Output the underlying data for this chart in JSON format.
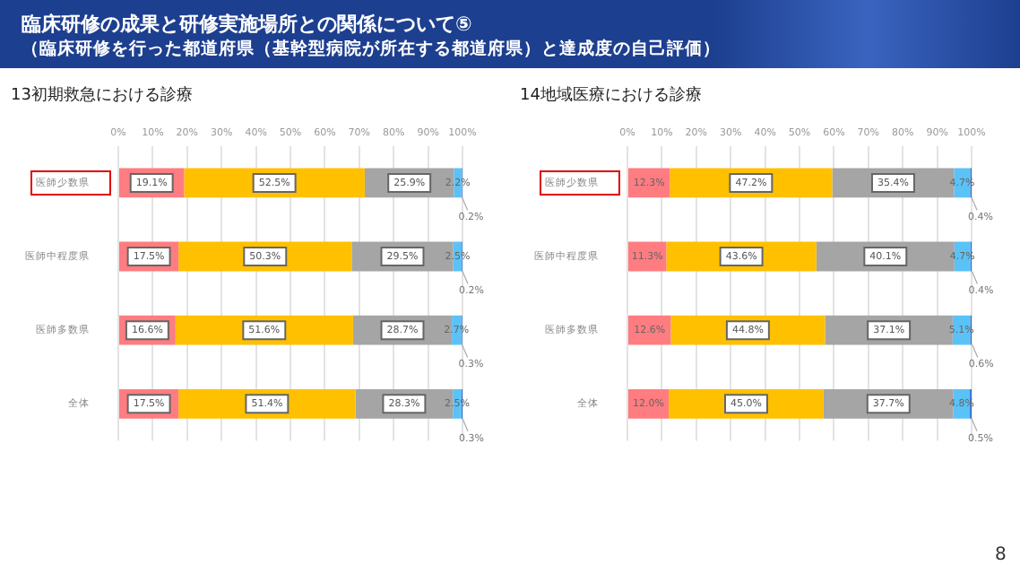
{
  "chart_data": [
    {
      "type": "bar",
      "orientation": "horizontal",
      "stacked": true,
      "title": "13初期救急における診療",
      "annotations": [
        "臨床研修の成果と研修実施場所との関係について⑤",
        "（臨床研修を行った都道府県（基幹型病院が所在する都道府県）と達成度の自己評価）"
      ],
      "categories": [
        "医師少数県",
        "医師中程度県",
        "医師多数県",
        "全体"
      ],
      "series": [
        {
          "color": "#ff7c80",
          "values": [
            19.1,
            17.5,
            16.6,
            17.5
          ],
          "value_labels": [
            "19.1%",
            "17.5%",
            "16.6%",
            "17.5%"
          ]
        },
        {
          "color": "#ffc000",
          "values": [
            52.5,
            50.3,
            51.6,
            51.4
          ],
          "value_labels": [
            "52.5%",
            "50.3%",
            "51.6%",
            "51.4%"
          ]
        },
        {
          "color": "#a5a5a5",
          "values": [
            25.9,
            29.5,
            28.7,
            28.3
          ],
          "value_labels": [
            "25.9%",
            "29.5%",
            "28.7%",
            "28.3%"
          ]
        },
        {
          "color": "#5bc2f7",
          "values": [
            2.2,
            2.5,
            2.7,
            2.5
          ],
          "value_labels": [
            "2.2%",
            "2.5%",
            "2.7%",
            "2.5%"
          ]
        },
        {
          "color": "#2e6fd0",
          "values": [
            0.2,
            0.2,
            0.3,
            0.3
          ],
          "value_labels": [
            "0.2%",
            "0.2%",
            "0.3%",
            "0.3%"
          ]
        }
      ],
      "xlim": [
        0,
        100
      ],
      "xticks": [
        {
          "value": 0,
          "label": "0%"
        },
        {
          "value": 10,
          "label": "10%"
        },
        {
          "value": 20,
          "label": "20%"
        },
        {
          "value": 30,
          "label": "30%"
        },
        {
          "value": 40,
          "label": "40%"
        },
        {
          "value": 50,
          "label": "50%"
        },
        {
          "value": 60,
          "label": "60%"
        },
        {
          "value": 70,
          "label": "70%"
        },
        {
          "value": 80,
          "label": "80%"
        },
        {
          "value": 90,
          "label": "90%"
        },
        {
          "value": 100,
          "label": "100%"
        }
      ],
      "grid": "x",
      "legend": false
    },
    {
      "type": "bar",
      "orientation": "horizontal",
      "stacked": true,
      "title": "14地域医療における診療",
      "annotations": [
        "8"
      ],
      "categories": [
        "医師少数県",
        "医師中程度県",
        "医師多数県",
        "全体"
      ],
      "series": [
        {
          "color": "#ff7c80",
          "values": [
            12.3,
            11.3,
            12.6,
            12.0
          ],
          "value_labels": [
            "12.3%",
            "11.3%",
            "12.6%",
            "12.0%"
          ]
        },
        {
          "color": "#ffc000",
          "values": [
            47.2,
            43.6,
            44.8,
            45.0
          ],
          "value_labels": [
            "47.2%",
            "43.6%",
            "44.8%",
            "45.0%"
          ]
        },
        {
          "color": "#a5a5a5",
          "values": [
            35.4,
            40.1,
            37.1,
            37.7
          ],
          "value_labels": [
            "35.4%",
            "40.1%",
            "37.1%",
            "37.7%"
          ]
        },
        {
          "color": "#5bc2f7",
          "values": [
            4.7,
            4.7,
            5.1,
            4.8
          ],
          "value_labels": [
            "4.7%",
            "4.7%",
            "5.1%",
            "4.8%"
          ]
        },
        {
          "color": "#2e6fd0",
          "values": [
            0.4,
            0.4,
            0.6,
            0.5
          ],
          "value_labels": [
            "0.4%",
            "0.4%",
            "0.6%",
            "0.5%"
          ]
        }
      ],
      "xlim": [
        0,
        100
      ],
      "xticks": [
        {
          "value": 0,
          "label": "0%"
        },
        {
          "value": 10,
          "label": "10%"
        },
        {
          "value": 20,
          "label": "20%"
        },
        {
          "value": 30,
          "label": "30%"
        },
        {
          "value": 40,
          "label": "40%"
        },
        {
          "value": 50,
          "label": "50%"
        },
        {
          "value": 60,
          "label": "60%"
        },
        {
          "value": 70,
          "label": "70%"
        },
        {
          "value": 80,
          "label": "80%"
        },
        {
          "value": 90,
          "label": "90%"
        },
        {
          "value": 100,
          "label": "100%"
        }
      ],
      "grid": "x",
      "legend": false
    }
  ]
}
